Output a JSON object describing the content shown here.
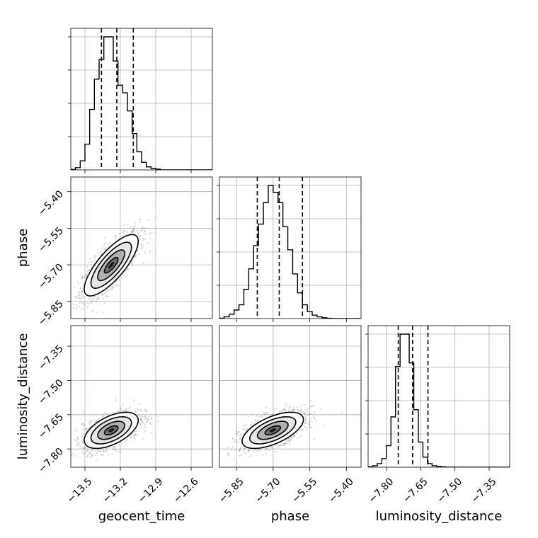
{
  "chart_data": {
    "type": "corner",
    "parameters": [
      "geocent_time",
      "phase",
      "luminosity_distance"
    ],
    "axis_labels": {
      "x": [
        "geocent_time",
        "phase",
        "luminosity_distance"
      ],
      "y": [
        "",
        "phase",
        "luminosity_distance"
      ]
    },
    "grid": true,
    "ranges": {
      "geocent_time": [
        -13.62,
        -12.42
      ],
      "phase": [
        -5.92,
        -5.34
      ],
      "luminosity_distance": [
        -7.88,
        -7.26
      ]
    },
    "ticks": {
      "geocent_time": {
        "values": [
          -13.5,
          -13.2,
          -12.9,
          -12.6
        ],
        "labels": [
          "−13.5",
          "−13.2",
          "−12.9",
          "−12.6"
        ]
      },
      "phase": {
        "values": [
          -5.85,
          -5.7,
          -5.55,
          -5.4
        ],
        "labels": [
          "−5.85",
          "−5.70",
          "−5.55",
          "−5.40"
        ]
      },
      "luminosity_distance": {
        "values": [
          -7.8,
          -7.65,
          -7.5,
          -7.35
        ],
        "labels": [
          "−7.80",
          "−7.65",
          "−7.50",
          "−7.35"
        ]
      }
    },
    "quantiles": {
      "geocent_time": [
        -13.36,
        -13.23,
        -13.09
      ],
      "phase": [
        -5.765,
        -5.675,
        -5.58
      ],
      "luminosity_distance": [
        -7.748,
        -7.685,
        -7.618
      ]
    },
    "histograms": {
      "geocent_time": {
        "edges": [
          -13.62,
          -13.58,
          -13.54,
          -13.5,
          -13.46,
          -13.42,
          -13.38,
          -13.34,
          -13.3,
          -13.26,
          -13.22,
          -13.18,
          -13.14,
          -13.1,
          -13.06,
          -13.02,
          -12.98,
          -12.94,
          -12.9,
          -12.86,
          -12.82,
          -12.78,
          -12.74,
          -12.7,
          -12.66,
          -12.62,
          -12.58,
          -12.54,
          -12.5,
          -12.46,
          -12.42
        ],
        "counts": [
          0.3,
          1.5,
          6,
          17,
          40,
          60,
          73,
          88,
          88,
          72,
          56,
          51,
          39,
          24,
          12,
          5,
          2,
          1,
          0.5,
          0,
          0,
          0,
          0,
          0,
          0,
          0,
          0,
          0,
          0,
          0
        ]
      },
      "phase": {
        "edges": [
          -5.92,
          -5.9,
          -5.88,
          -5.86,
          -5.84,
          -5.82,
          -5.8,
          -5.78,
          -5.76,
          -5.74,
          -5.72,
          -5.7,
          -5.68,
          -5.66,
          -5.64,
          -5.62,
          -5.6,
          -5.58,
          -5.56,
          -5.54,
          -5.52,
          -5.5,
          -5.48,
          -5.46,
          -5.44,
          -5.42,
          -5.4,
          -5.38,
          -5.36,
          -5.34
        ],
        "counts": [
          0.5,
          2,
          5,
          10,
          16,
          34,
          58,
          85,
          110,
          135,
          155,
          147,
          135,
          107,
          80,
          52,
          30,
          16,
          8,
          4,
          2,
          1,
          0.3,
          0,
          0,
          0,
          0,
          0,
          0
        ]
      },
      "luminosity_distance": {
        "edges": [
          -7.88,
          -7.86,
          -7.84,
          -7.82,
          -7.8,
          -7.78,
          -7.76,
          -7.74,
          -7.72,
          -7.7,
          -7.68,
          -7.66,
          -7.64,
          -7.62,
          -7.6,
          -7.58,
          -7.56,
          -7.54,
          -7.52,
          -7.5,
          -7.48,
          -7.46,
          -7.44,
          -7.42,
          -7.4,
          -7.38,
          -7.36,
          -7.34,
          -7.32,
          -7.3,
          -7.28,
          -7.26
        ],
        "counts": [
          0.5,
          2,
          5,
          12,
          30,
          70,
          140,
          185,
          185,
          145,
          80,
          35,
          14,
          5,
          2,
          1,
          0.5,
          0,
          0,
          0,
          0,
          0,
          0,
          0,
          0,
          0,
          0,
          0,
          0,
          0,
          0
        ]
      }
    },
    "correlations": {
      "phase_vs_geocent_time": 0.78,
      "luminosity_distance_vs_geocent_time": 0.55,
      "luminosity_distance_vs_phase": 0.6
    },
    "contour_sigmas": [
      0.5,
      1.0,
      1.5,
      2.0
    ],
    "colors": {
      "line": "#000000",
      "grid": "#b0b0b0",
      "scatter": "#808080",
      "background": "#ffffff"
    }
  }
}
